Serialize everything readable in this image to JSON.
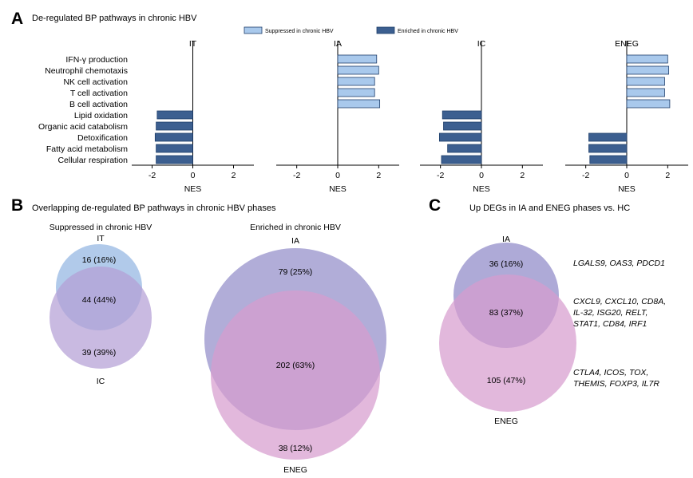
{
  "panel_a": {
    "letter": "A",
    "title": "De-regulated BP pathways in chronic HBV",
    "legend": [
      {
        "label": "Suppressed in chronic HBV",
        "color": "#a9c9ec"
      },
      {
        "label": "Enriched in chronic HBV",
        "color": "#3c5f90"
      }
    ]
  },
  "panel_b": {
    "letter": "B",
    "title": "Overlapping de-regulated BP pathways in chronic HBV phases"
  },
  "panel_c": {
    "letter": "C",
    "title": "Up DEGs in IA and ENEG phases vs. HC"
  },
  "chart_data": [
    {
      "type": "bar",
      "orientation": "horizontal",
      "title": "De-regulated BP pathways in chronic HBV",
      "categories": [
        "IFN-γ production",
        "Neutrophil chemotaxis",
        "NK cell activation",
        "T cell activation",
        "B cell activation",
        "Lipid oxidation",
        "Organic acid catabolism",
        "Detoxification",
        "Fatty acid metabolism",
        "Cellular respiration"
      ],
      "xlabel": "NES",
      "xlim": [
        -3,
        3
      ],
      "xticks": [
        -2,
        0,
        2
      ],
      "legend": [
        "Suppressed in chronic HBV",
        "Enriched in chronic HBV"
      ],
      "series": [
        {
          "name": "IT",
          "values": [
            null,
            null,
            null,
            null,
            null,
            -1.75,
            -1.8,
            -1.85,
            -1.8,
            -1.8
          ]
        },
        {
          "name": "IA",
          "values": [
            1.9,
            2.0,
            1.8,
            1.8,
            2.05,
            null,
            null,
            null,
            null,
            null
          ]
        },
        {
          "name": "IC",
          "values": [
            null,
            null,
            null,
            null,
            null,
            -1.9,
            -1.85,
            -2.05,
            -1.65,
            -1.95
          ]
        },
        {
          "name": "ENEG",
          "values": [
            2.0,
            2.05,
            1.85,
            1.85,
            2.1,
            null,
            null,
            -1.85,
            -1.85,
            -1.8
          ]
        }
      ]
    },
    {
      "type": "venn",
      "title": "Suppressed in chronic HBV",
      "sets": [
        "IT",
        "IC"
      ],
      "regions": [
        "16 (16%)",
        "44 (44%)",
        "39 (39%)"
      ],
      "counts": [
        16,
        44,
        39
      ],
      "colors": [
        "#a9c4e8",
        "#b49fd6"
      ]
    },
    {
      "type": "venn",
      "title": "Enriched in chronic HBV",
      "sets": [
        "IA",
        "ENEG"
      ],
      "regions": [
        "79 (25%)",
        "202 (63%)",
        "38 (12%)"
      ],
      "counts": [
        79,
        202,
        38
      ],
      "colors": [
        "#a09bd0",
        "#d79ccf"
      ]
    },
    {
      "type": "venn",
      "title": "Up DEGs in IA and ENEG phases vs. HC",
      "sets": [
        "IA",
        "ENEG"
      ],
      "regions": [
        "36 (16%)",
        "83 (37%)",
        "105 (47%)"
      ],
      "counts": [
        36,
        83,
        105
      ],
      "colors": [
        "#a09bd0",
        "#d79ccf"
      ],
      "gene_annotations": [
        "LGALS9, OAS3, PDCD1",
        "CXCL9, CXCL10, CD8A,",
        "IL-32, ISG20, RELT,",
        "STAT1, CD84, IRF1",
        "CTLA4, ICOS, TOX,",
        "THEMIS, FOXP3, IL7R"
      ]
    }
  ]
}
